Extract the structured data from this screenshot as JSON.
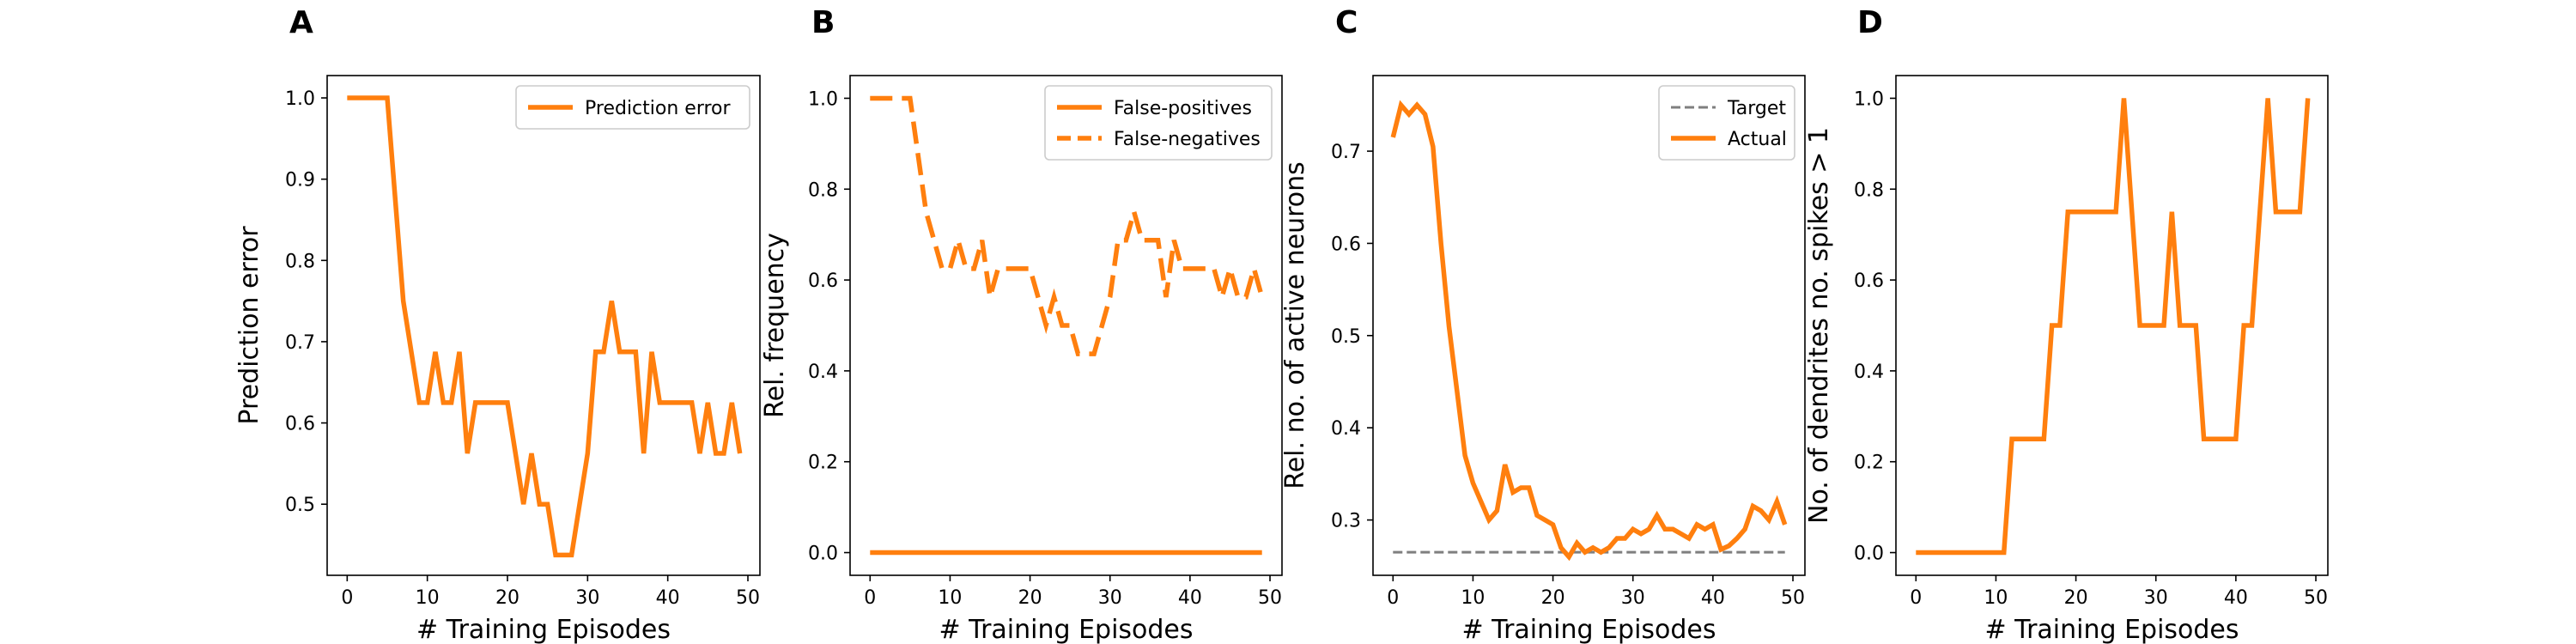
{
  "figure": {
    "series_color": "#ff7f0e",
    "target_color": "#7f7f7f"
  },
  "chart_data": [
    {
      "type": "line",
      "panel_label": "A",
      "title": "",
      "xlabel": "# Training Episodes",
      "ylabel": "Prediction error",
      "xlim": [
        -2.5,
        51.5
      ],
      "ylim": [
        0.4125,
        1.0275
      ],
      "xticks": [
        0,
        10,
        20,
        30,
        40,
        50
      ],
      "yticks": [
        0.5,
        0.6,
        0.7,
        0.8,
        0.9,
        1.0
      ],
      "ytick_labels": [
        "0.5",
        "0.6",
        "0.7",
        "0.8",
        "0.9",
        "1.0"
      ],
      "legend": "top-right",
      "grid": false,
      "x": [
        0,
        1,
        2,
        3,
        4,
        5,
        6,
        7,
        8,
        9,
        10,
        11,
        12,
        13,
        14,
        15,
        16,
        17,
        18,
        19,
        20,
        21,
        22,
        23,
        24,
        25,
        26,
        27,
        28,
        29,
        30,
        31,
        32,
        33,
        34,
        35,
        36,
        37,
        38,
        39,
        40,
        41,
        42,
        43,
        44,
        45,
        46,
        47,
        48,
        49
      ],
      "series": [
        {
          "name": "Prediction error",
          "style": "solid",
          "color": "#ff7f0e",
          "values": [
            1.0,
            1.0,
            1.0,
            1.0,
            1.0,
            1.0,
            0.875,
            0.75,
            0.6875,
            0.625,
            0.625,
            0.6875,
            0.625,
            0.625,
            0.6875,
            0.5625,
            0.625,
            0.625,
            0.625,
            0.625,
            0.625,
            0.5625,
            0.5,
            0.5625,
            0.5,
            0.5,
            0.4375,
            0.4375,
            0.4375,
            0.5,
            0.5625,
            0.6875,
            0.6875,
            0.75,
            0.6875,
            0.6875,
            0.6875,
            0.5625,
            0.6875,
            0.625,
            0.625,
            0.625,
            0.625,
            0.625,
            0.5625,
            0.625,
            0.5625,
            0.5625,
            0.625,
            0.5625
          ]
        }
      ]
    },
    {
      "type": "line",
      "panel_label": "B",
      "title": "",
      "xlabel": "# Training Episodes",
      "ylabel": "Rel. frequency",
      "xlim": [
        -2.5,
        51.5
      ],
      "ylim": [
        -0.05,
        1.05
      ],
      "xticks": [
        0,
        10,
        20,
        30,
        40,
        50
      ],
      "yticks": [
        0.0,
        0.2,
        0.4,
        0.6,
        0.8,
        1.0
      ],
      "ytick_labels": [
        "0.0",
        "0.2",
        "0.4",
        "0.6",
        "0.8",
        "1.0"
      ],
      "legend": "top-right",
      "grid": false,
      "x": [
        0,
        1,
        2,
        3,
        4,
        5,
        6,
        7,
        8,
        9,
        10,
        11,
        12,
        13,
        14,
        15,
        16,
        17,
        18,
        19,
        20,
        21,
        22,
        23,
        24,
        25,
        26,
        27,
        28,
        29,
        30,
        31,
        32,
        33,
        34,
        35,
        36,
        37,
        38,
        39,
        40,
        41,
        42,
        43,
        44,
        45,
        46,
        47,
        48,
        49
      ],
      "series": [
        {
          "name": "False-positives",
          "style": "solid",
          "color": "#ff7f0e",
          "values": [
            0,
            0,
            0,
            0,
            0,
            0,
            0,
            0,
            0,
            0,
            0,
            0,
            0,
            0,
            0,
            0,
            0,
            0,
            0,
            0,
            0,
            0,
            0,
            0,
            0,
            0,
            0,
            0,
            0,
            0,
            0,
            0,
            0,
            0,
            0,
            0,
            0,
            0,
            0,
            0,
            0,
            0,
            0,
            0,
            0,
            0,
            0,
            0,
            0,
            0
          ]
        },
        {
          "name": "False-negatives",
          "style": "dashed",
          "color": "#ff7f0e",
          "values": [
            1.0,
            1.0,
            1.0,
            1.0,
            1.0,
            1.0,
            0.875,
            0.75,
            0.6875,
            0.625,
            0.625,
            0.6875,
            0.625,
            0.625,
            0.6875,
            0.5625,
            0.625,
            0.625,
            0.625,
            0.625,
            0.625,
            0.5625,
            0.5,
            0.5625,
            0.5,
            0.5,
            0.4375,
            0.4375,
            0.4375,
            0.5,
            0.5625,
            0.6875,
            0.6875,
            0.75,
            0.6875,
            0.6875,
            0.6875,
            0.5625,
            0.6875,
            0.625,
            0.625,
            0.625,
            0.625,
            0.625,
            0.5625,
            0.625,
            0.5625,
            0.5625,
            0.625,
            0.5625
          ]
        }
      ]
    },
    {
      "type": "line",
      "panel_label": "C",
      "title": "",
      "xlabel": "# Training Episodes",
      "ylabel": "Rel. no. of active neurons",
      "xlim": [
        -2.5,
        51.5
      ],
      "ylim": [
        0.24,
        0.782
      ],
      "xticks": [
        0,
        10,
        20,
        30,
        40,
        50
      ],
      "yticks": [
        0.3,
        0.4,
        0.5,
        0.6,
        0.7
      ],
      "ytick_labels": [
        "0.3",
        "0.4",
        "0.5",
        "0.6",
        "0.7"
      ],
      "legend": "top-right",
      "grid": false,
      "x": [
        0,
        1,
        2,
        3,
        4,
        5,
        6,
        7,
        8,
        9,
        10,
        11,
        12,
        13,
        14,
        15,
        16,
        17,
        18,
        19,
        20,
        21,
        22,
        23,
        24,
        25,
        26,
        27,
        28,
        29,
        30,
        31,
        32,
        33,
        34,
        35,
        36,
        37,
        38,
        39,
        40,
        41,
        42,
        43,
        44,
        45,
        46,
        47,
        48,
        49
      ],
      "series": [
        {
          "name": "Target",
          "style": "dashed",
          "color": "#7f7f7f",
          "values": [
            0.265,
            0.265,
            0.265,
            0.265,
            0.265,
            0.265,
            0.265,
            0.265,
            0.265,
            0.265,
            0.265,
            0.265,
            0.265,
            0.265,
            0.265,
            0.265,
            0.265,
            0.265,
            0.265,
            0.265,
            0.265,
            0.265,
            0.265,
            0.265,
            0.265,
            0.265,
            0.265,
            0.265,
            0.265,
            0.265,
            0.265,
            0.265,
            0.265,
            0.265,
            0.265,
            0.265,
            0.265,
            0.265,
            0.265,
            0.265,
            0.265,
            0.265,
            0.265,
            0.265,
            0.265,
            0.265,
            0.265,
            0.265,
            0.265,
            0.265
          ]
        },
        {
          "name": "Actual",
          "style": "solid",
          "color": "#ff7f0e",
          "values": [
            0.715,
            0.75,
            0.74,
            0.75,
            0.74,
            0.705,
            0.6,
            0.51,
            0.44,
            0.37,
            0.34,
            0.32,
            0.3,
            0.31,
            0.36,
            0.33,
            0.335,
            0.335,
            0.305,
            0.3,
            0.295,
            0.27,
            0.26,
            0.275,
            0.265,
            0.27,
            0.265,
            0.27,
            0.28,
            0.28,
            0.29,
            0.285,
            0.29,
            0.305,
            0.29,
            0.29,
            0.285,
            0.28,
            0.295,
            0.29,
            0.295,
            0.268,
            0.272,
            0.28,
            0.29,
            0.315,
            0.31,
            0.3,
            0.32,
            0.295
          ]
        }
      ]
    },
    {
      "type": "line",
      "panel_label": "D",
      "title": "",
      "xlabel": "# Training Episodes",
      "ylabel": "No. of dendrites no. spikes > 1",
      "xlim": [
        -2.5,
        51.5
      ],
      "ylim": [
        -0.05,
        1.05
      ],
      "xticks": [
        0,
        10,
        20,
        30,
        40,
        50
      ],
      "yticks": [
        0.0,
        0.2,
        0.4,
        0.6,
        0.8,
        1.0
      ],
      "ytick_labels": [
        "0.0",
        "0.2",
        "0.4",
        "0.6",
        "0.8",
        "1.0"
      ],
      "legend": "none",
      "grid": false,
      "x": [
        0,
        1,
        2,
        3,
        4,
        5,
        6,
        7,
        8,
        9,
        10,
        11,
        12,
        13,
        14,
        15,
        16,
        17,
        18,
        19,
        20,
        21,
        22,
        23,
        24,
        25,
        26,
        27,
        28,
        29,
        30,
        31,
        32,
        33,
        34,
        35,
        36,
        37,
        38,
        39,
        40,
        41,
        42,
        43,
        44,
        45,
        46,
        47,
        48,
        49
      ],
      "series": [
        {
          "name": "",
          "style": "solid",
          "color": "#ff7f0e",
          "values": [
            0,
            0,
            0,
            0,
            0,
            0,
            0,
            0,
            0,
            0,
            0,
            0,
            0.25,
            0.25,
            0.25,
            0.25,
            0.25,
            0.5,
            0.5,
            0.75,
            0.75,
            0.75,
            0.75,
            0.75,
            0.75,
            0.75,
            1.0,
            0.75,
            0.5,
            0.5,
            0.5,
            0.5,
            0.75,
            0.5,
            0.5,
            0.5,
            0.25,
            0.25,
            0.25,
            0.25,
            0.25,
            0.5,
            0.5,
            0.75,
            1.0,
            0.75,
            0.75,
            0.75,
            0.75,
            1.0
          ]
        }
      ]
    }
  ]
}
